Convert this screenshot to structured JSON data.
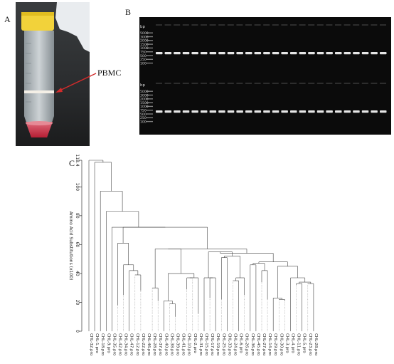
{
  "panels": {
    "a": "A",
    "b": "B",
    "c": "C"
  },
  "photo": {
    "annotation": "PBMC"
  },
  "gel": {
    "ladder_unit": "bp",
    "ladder_values": [
      "5000",
      "3000",
      "2000",
      "1500",
      "1000",
      "750",
      "500",
      "250",
      "100"
    ],
    "rows": 2,
    "lanes_per_row": 26
  },
  "chart_data": {
    "type": "dendrogram",
    "ylabel": "Amino Acid Substitutions (x100)",
    "ylim": [
      0,
      118.4
    ],
    "yticks": [
      0,
      20,
      40,
      60,
      80,
      100,
      118.4
    ],
    "ytick_labels": [
      "0",
      "20",
      "40",
      "60",
      "80",
      "100",
      "118.4"
    ],
    "leaves": [
      "CHL-32.pro",
      "CHL-1.pro",
      "CHL-18.pro",
      "CHL-9.pro",
      "CHL-35.pro",
      "CHL-42.pro",
      "CHL-34.pro",
      "CHL-47.pro",
      "CHL-12.pro",
      "CHL-22.pro",
      "CHL-46.pro",
      "CHL-28.pro",
      "CHL-37.pro",
      "CHL-40.pro",
      "CHL-38.pro",
      "CHL-39.pro",
      "CHL-41.pro",
      "CHL-10.pro",
      "CHL-2.pro",
      "CHL-31.pro",
      "CHL-15.pro",
      "CHL-17.pro",
      "CHL-19.pro",
      "CHL-25.pro",
      "CHL-33.pro",
      "CHL-24.pro",
      "CHL-6.pro",
      "CHL-26.pro",
      "CHL-36.pro",
      "CHL-45.pro",
      "CHL-27.pro",
      "CHL-14.pro",
      "CHL-29.pro",
      "CHL-30.pro",
      "CHL-3.pro",
      "CHL-4.pro",
      "CHL-11.pro",
      "CHL-5.pro",
      "CHL-23.pro",
      "CHL-28.pro"
    ]
  }
}
